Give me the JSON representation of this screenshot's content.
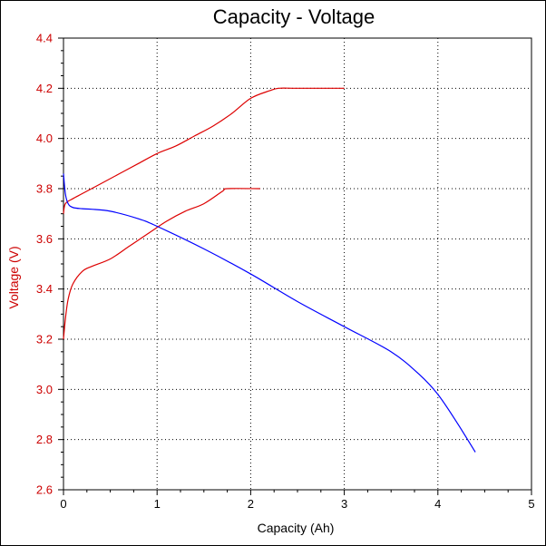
{
  "chart_data": {
    "type": "line",
    "title": "Capacity - Voltage",
    "xlabel": "Capacity (Ah)",
    "ylabel": "Voltage (V)",
    "xlim": [
      0,
      5
    ],
    "ylim": [
      2.6,
      4.4
    ],
    "xticks": [
      "0",
      "1",
      "2",
      "3",
      "4",
      "5"
    ],
    "yticks": [
      "2.6",
      "2.8",
      "3.0",
      "3.2",
      "3.4",
      "3.6",
      "3.8",
      "4.0",
      "4.2",
      "4.4"
    ],
    "grid": true,
    "colors": {
      "frame": "#000000",
      "y_axis_text": "#cc0000"
    },
    "series": [
      {
        "color": "#dd0000",
        "x": [
          0,
          0.02,
          0.1,
          0.2,
          0.4,
          0.6,
          0.8,
          1.0,
          1.2,
          1.4,
          1.6,
          1.8,
          2.0,
          2.2,
          2.3,
          2.5,
          3.0
        ],
        "y": [
          3.7,
          3.74,
          3.76,
          3.78,
          3.82,
          3.86,
          3.9,
          3.94,
          3.97,
          4.01,
          4.05,
          4.1,
          4.16,
          4.19,
          4.2,
          4.2,
          4.2
        ]
      },
      {
        "color": "#dd0000",
        "x": [
          0,
          0.02,
          0.05,
          0.1,
          0.2,
          0.3,
          0.5,
          0.7,
          0.9,
          1.1,
          1.3,
          1.5,
          1.7,
          1.75,
          2.1
        ],
        "y": [
          3.2,
          3.28,
          3.36,
          3.42,
          3.47,
          3.49,
          3.52,
          3.57,
          3.62,
          3.67,
          3.71,
          3.74,
          3.79,
          3.8,
          3.8
        ]
      },
      {
        "color": "#0000ff",
        "x": [
          0,
          0.02,
          0.05,
          0.1,
          0.2,
          0.3,
          0.5,
          0.8,
          1.0,
          1.5,
          2.0,
          2.5,
          3.0,
          3.5,
          3.8,
          4.0,
          4.2,
          4.4
        ],
        "y": [
          3.86,
          3.78,
          3.74,
          3.725,
          3.72,
          3.718,
          3.71,
          3.68,
          3.65,
          3.56,
          3.46,
          3.35,
          3.25,
          3.15,
          3.06,
          2.98,
          2.87,
          2.75
        ]
      }
    ]
  }
}
